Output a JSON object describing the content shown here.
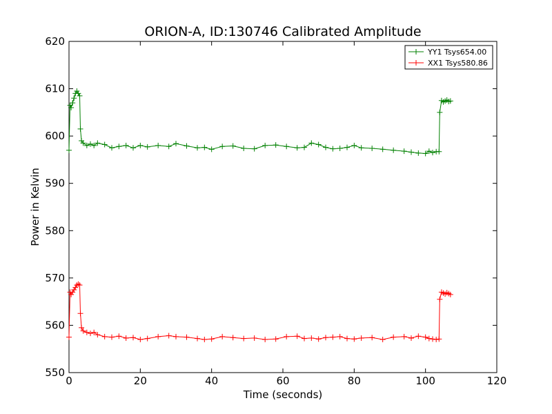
{
  "chart_data": {
    "type": "line",
    "title": "ORION-A, ID:130746 Calibrated Amplitude",
    "xlabel": "Time (seconds)",
    "ylabel": "Power in Kelvin",
    "xlim": [
      0,
      120
    ],
    "ylim": [
      550,
      620
    ],
    "xticks": [
      0,
      20,
      40,
      60,
      80,
      100,
      120
    ],
    "yticks": [
      550,
      560,
      570,
      580,
      590,
      600,
      610,
      620
    ],
    "grid": false,
    "legend_position": "top-right",
    "marker": "+",
    "series": [
      {
        "name": "YY1 Tsys654.00",
        "color": "#008000",
        "x": [
          0,
          0.3,
          0.6,
          1.0,
          1.4,
          1.8,
          2.2,
          2.6,
          3.0,
          3.2,
          3.5,
          4,
          5,
          6,
          7,
          8,
          10,
          12,
          14,
          16,
          18,
          20,
          22,
          25,
          28,
          30,
          33,
          36,
          38,
          40,
          43,
          46,
          49,
          52,
          55,
          58,
          61,
          64,
          66,
          68,
          70,
          72,
          74,
          76,
          78,
          80,
          82,
          85,
          88,
          91,
          94,
          96,
          98,
          100,
          101,
          102,
          103,
          103.8,
          104,
          104.5,
          105,
          105.5,
          106,
          106.5,
          107
        ],
        "y": [
          597.0,
          606.5,
          606.0,
          607.0,
          608.0,
          609.0,
          609.5,
          609.0,
          608.5,
          601.5,
          599.0,
          598.5,
          598.0,
          598.3,
          598.0,
          598.5,
          598.2,
          597.5,
          597.8,
          598.0,
          597.5,
          598.0,
          597.7,
          598.0,
          597.8,
          598.4,
          597.9,
          597.5,
          597.6,
          597.2,
          597.8,
          597.9,
          597.4,
          597.3,
          598.0,
          598.1,
          597.8,
          597.5,
          597.6,
          598.5,
          598.2,
          597.6,
          597.3,
          597.4,
          597.6,
          598.0,
          597.5,
          597.4,
          597.2,
          597.0,
          596.8,
          596.6,
          596.4,
          596.3,
          596.8,
          596.5,
          596.7,
          596.7,
          605.0,
          607.5,
          607.2,
          607.4,
          607.6,
          607.3,
          607.4
        ]
      },
      {
        "name": "XX1 Tsys580.86",
        "color": "#ff0000",
        "x": [
          0,
          0.3,
          0.6,
          1.0,
          1.4,
          1.8,
          2.2,
          2.6,
          3.0,
          3.2,
          3.5,
          4,
          5,
          6,
          7,
          8,
          10,
          12,
          14,
          16,
          18,
          20,
          22,
          25,
          28,
          30,
          33,
          36,
          38,
          40,
          43,
          46,
          49,
          52,
          55,
          58,
          61,
          64,
          66,
          68,
          70,
          72,
          74,
          76,
          78,
          80,
          82,
          85,
          88,
          91,
          94,
          96,
          98,
          100,
          101,
          102,
          103,
          103.8,
          104,
          104.5,
          105,
          105.5,
          106,
          106.5,
          107
        ],
        "y": [
          557.5,
          567.0,
          566.5,
          567.0,
          567.5,
          568.0,
          568.5,
          568.7,
          568.5,
          562.5,
          559.5,
          558.8,
          558.5,
          558.3,
          558.5,
          558.0,
          557.6,
          557.5,
          557.7,
          557.3,
          557.4,
          557.0,
          557.2,
          557.6,
          557.8,
          557.6,
          557.5,
          557.2,
          557.0,
          557.1,
          557.6,
          557.4,
          557.2,
          557.3,
          557.0,
          557.1,
          557.6,
          557.7,
          557.2,
          557.3,
          557.1,
          557.4,
          557.5,
          557.6,
          557.2,
          557.1,
          557.3,
          557.4,
          557.0,
          557.5,
          557.6,
          557.3,
          557.7,
          557.5,
          557.2,
          557.1,
          557.0,
          557.1,
          565.5,
          567.0,
          566.8,
          566.6,
          566.9,
          566.7,
          566.5
        ]
      }
    ]
  }
}
